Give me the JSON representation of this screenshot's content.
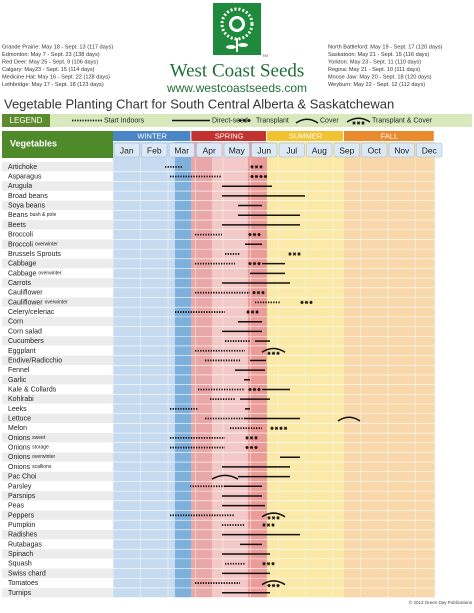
{
  "logo": {
    "brand": "West Coast Seeds",
    "url": "www.westcoastseeds.com",
    "tm": "TM"
  },
  "frost_dates": {
    "left": [
      "Grande Prairie: May 18 - Sept. 13 (117 days)",
      "Edmonton: May 7 - Sept. 23 (138 days)",
      "Red Deer: May 25 - Sept. 9 (106 days)",
      "Calgary: May23 - Sept. 15 (114 days)",
      "Medicine Hat: May 16 - Sept. 22 (128 days)",
      "Lethbridge: May 17 - Sept. 18 (123 days)"
    ],
    "right": [
      "North Battleford: May 19 - Sept. 17 (120 days)",
      "Saskatoon: May 21 - Sept. 15 (116 days)",
      "Yorkton: May 23 - Sept. 11 (110 days)",
      "Regina: May 21 - Sept. 10 (111 days)",
      "Moose Jaw: May 20 - Sept. 18 (120 days)",
      "Weyburn: May 22 - Sept. 12 (112 days)"
    ]
  },
  "title": "Vegetable Planting Chart for South Central Alberta & Saskatchewan",
  "legend": {
    "label": "LEGEND",
    "items": [
      "Start Indoors",
      "Direct-seed",
      "Transplant",
      "Cover",
      "Transplant & Cover"
    ]
  },
  "table": {
    "header": "Vegetables",
    "seasons": [
      "WINTER",
      "SPRING",
      "SUMMER",
      "FALL"
    ],
    "months": [
      "Jan",
      "Feb",
      "Mar",
      "Apr",
      "May",
      "Jun",
      "Jul",
      "Aug",
      "Sep",
      "Oct",
      "Nov",
      "Dec"
    ],
    "rows": [
      {
        "name": "Artichoke"
      },
      {
        "name": "Asparagus"
      },
      {
        "name": "Arugula"
      },
      {
        "name": "Broad beans"
      },
      {
        "name": "Soya beans"
      },
      {
        "name": "Beans",
        "note": "bush & pole"
      },
      {
        "name": "Beets"
      },
      {
        "name": "Broccoli"
      },
      {
        "name": "Broccoli",
        "note": "overwinter"
      },
      {
        "name": "Brussels Sprouts"
      },
      {
        "name": "Cabbage"
      },
      {
        "name": "Cabbage",
        "note": "overwinter"
      },
      {
        "name": "Carrots"
      },
      {
        "name": "Cauliflower"
      },
      {
        "name": "Cauliflower",
        "note": "overwinter"
      },
      {
        "name": "Celery/celeriac"
      },
      {
        "name": "Corn"
      },
      {
        "name": "Corn salad"
      },
      {
        "name": "Cucumbers"
      },
      {
        "name": "Eggplant"
      },
      {
        "name": "Endive/Radicchio"
      },
      {
        "name": "Fennel"
      },
      {
        "name": "Garlic"
      },
      {
        "name": "Kale & Collards"
      },
      {
        "name": "Kohlrabi"
      },
      {
        "name": "Leeks"
      },
      {
        "name": "Lettuce"
      },
      {
        "name": "Melon"
      },
      {
        "name": "Onions",
        "note": "sweet"
      },
      {
        "name": "Onions",
        "note": "storage"
      },
      {
        "name": "Onions",
        "note": "overwinter"
      },
      {
        "name": "Onions",
        "note": "scallions"
      },
      {
        "name": "Pac Choi"
      },
      {
        "name": "Parsley"
      },
      {
        "name": "Parsnips"
      },
      {
        "name": "Peas"
      },
      {
        "name": "Peppers"
      },
      {
        "name": "Pumpkin"
      },
      {
        "name": "Radishes"
      },
      {
        "name": "Rutabagas"
      },
      {
        "name": "Spinach"
      },
      {
        "name": "Squash"
      },
      {
        "name": "Swiss chard"
      },
      {
        "name": "Tomatoes"
      },
      {
        "name": "Turnips"
      }
    ]
  },
  "footer": "© 2013 Green Day Publications"
}
